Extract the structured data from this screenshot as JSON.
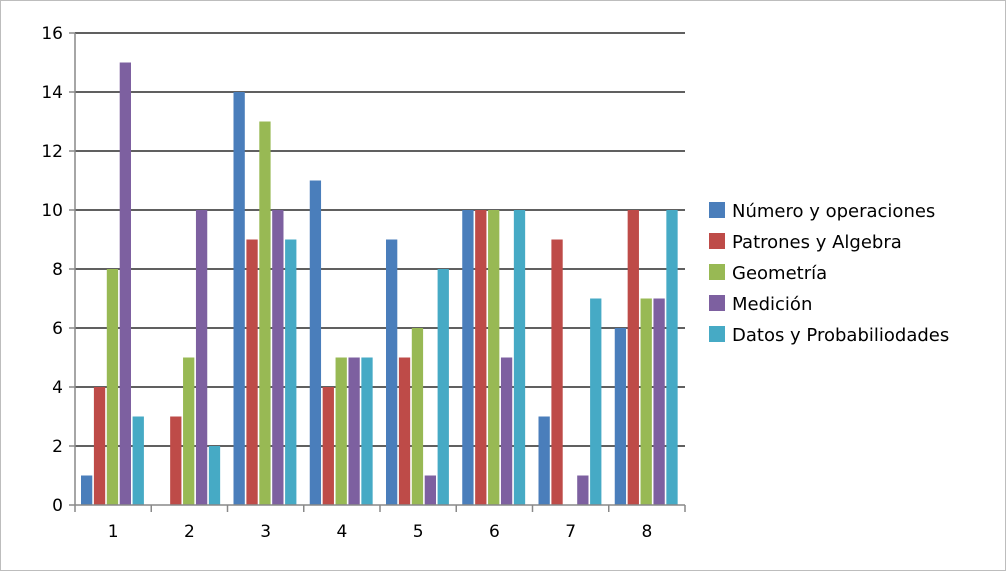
{
  "chart_data": {
    "type": "bar",
    "categories": [
      "1",
      "2",
      "3",
      "4",
      "5",
      "6",
      "7",
      "8"
    ],
    "series": [
      {
        "name": "Número y operaciones",
        "color": "#4a7ebb",
        "values": [
          1,
          0,
          14,
          11,
          9,
          10,
          3,
          6
        ]
      },
      {
        "name": "Patrones y Algebra",
        "color": "#be4b48",
        "values": [
          4,
          3,
          9,
          4,
          5,
          10,
          9,
          10
        ]
      },
      {
        "name": "Geometría",
        "color": "#98b954",
        "values": [
          8,
          5,
          13,
          5,
          6,
          10,
          0,
          7
        ]
      },
      {
        "name": "Medición",
        "color": "#7d60a0",
        "values": [
          15,
          10,
          10,
          5,
          1,
          5,
          1,
          7
        ]
      },
      {
        "name": "Datos y Probabiliodades",
        "color": "#46aac5",
        "values": [
          3,
          2,
          9,
          5,
          8,
          10,
          7,
          10
        ]
      }
    ],
    "y_ticks": [
      "0",
      "2",
      "4",
      "6",
      "8",
      "10",
      "12",
      "14",
      "16"
    ],
    "ylim": [
      0,
      16
    ],
    "grid": true,
    "legend_position": "right"
  }
}
